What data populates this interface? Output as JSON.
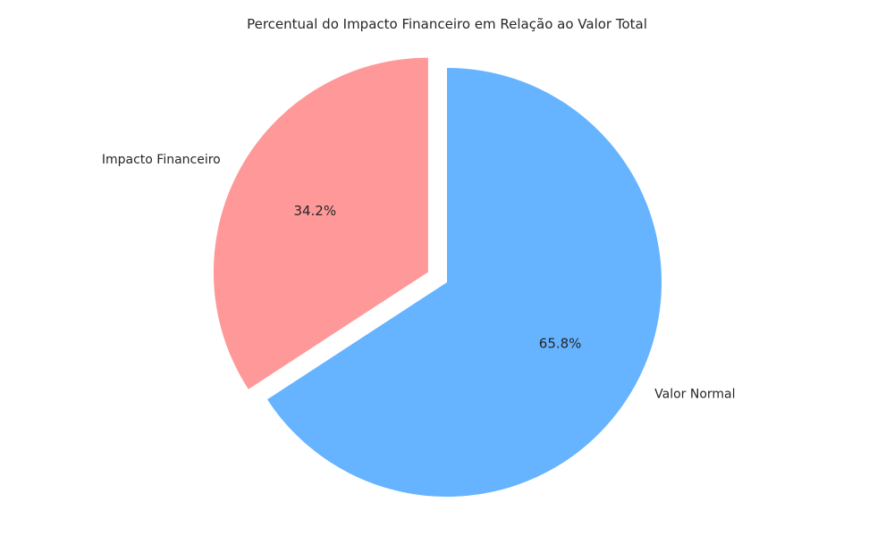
{
  "chart_data": {
    "type": "pie",
    "title": "Percentual do Impacto Financeiro em Relação ao Valor Total",
    "slices": [
      {
        "label": "Impacto Financeiro",
        "value": 34.2,
        "pct_label": "34.2%",
        "color": "#ff9999",
        "exploded": true
      },
      {
        "label": "Valor Normal",
        "value": 65.8,
        "pct_label": "65.8%",
        "color": "#66b3ff",
        "exploded": false
      }
    ],
    "start_angle_deg": 90,
    "direction": "counterclockwise"
  }
}
